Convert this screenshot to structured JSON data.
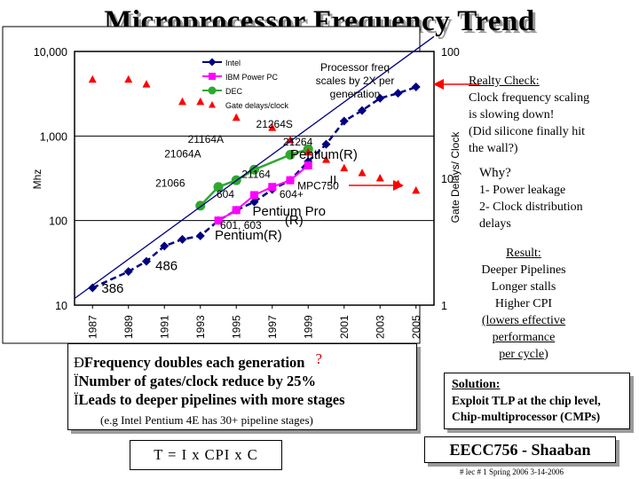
{
  "slide": {
    "title": "Microprocessor Frequency Trend",
    "reality": {
      "heading": "Realty Check:",
      "lines": [
        "Clock frequency scaling",
        "is slowing down!",
        "(Did silicone finally hit",
        "the wall?)"
      ]
    },
    "why": {
      "heading": "Why?",
      "lines": [
        "1- Power leakage",
        "2- Clock distribution",
        "delays"
      ]
    },
    "result": {
      "heading": "Result:",
      "lines": [
        "Deeper Pipelines",
        "Longer stalls",
        "Higher CPI"
      ],
      "underlined": [
        "(lowers effective",
        "performance",
        "per cycle"
      ],
      "close_paren": ")"
    },
    "solution": {
      "heading": "Solution:",
      "lines": [
        "Exploit TLP at the chip level,",
        "Chip-multiprocessor (CMPs)"
      ]
    },
    "bullets": [
      {
        "marker": "Ð",
        "text": "Frequency doubles each generation",
        "suffix": "?"
      },
      {
        "marker": "Ï",
        "text": "Number of gates/clock reduce by 25%",
        "suffix": ""
      },
      {
        "marker": "Ï",
        "text": "Leads to deeper pipelines with more stages",
        "suffix": ""
      }
    ],
    "bullets_note": "(e.g Intel Pentium 4E  has 30+ pipeline stages)",
    "formula": "T = I x CPI  x C",
    "footer_course": "EECC756 - Shaaban",
    "footer_line": "#  lec # 1    Spring 2006   3-14-2006"
  },
  "chart_data": {
    "type": "line",
    "x_ticks": [
      "1987",
      "1989",
      "1991",
      "1993",
      "1995",
      "1997",
      "1999",
      "2001",
      "2003",
      "2005"
    ],
    "x_range": [
      1986,
      2006
    ],
    "y_left": {
      "label": "Mhz",
      "scale": "log",
      "range": [
        10,
        10000
      ],
      "ticks": [
        "10",
        "100",
        "1,000",
        "10,000"
      ]
    },
    "y_right": {
      "label": "Gate Delays/ Clock",
      "scale": "log",
      "range": [
        1,
        100
      ],
      "ticks": [
        "1",
        "10",
        "100"
      ]
    },
    "legend": {
      "placement": "top-center",
      "items": [
        {
          "name": "Intel",
          "color": "#000080",
          "marker": "diamond"
        },
        {
          "name": "IBM Power PC",
          "color": "#ff00ff",
          "marker": "square"
        },
        {
          "name": "DEC",
          "color": "#2fa82f",
          "marker": "circle"
        },
        {
          "name": "Gate delays/clock",
          "color": "#ff0000",
          "marker": "triangle"
        }
      ]
    },
    "annotation": {
      "lines": [
        "Processor freq",
        "scales by 2X per",
        "generation"
      ]
    },
    "series": [
      {
        "name": "Intel",
        "color": "#000080",
        "axis": "left",
        "points": [
          [
            1987,
            16
          ],
          [
            1989,
            25
          ],
          [
            1990,
            33
          ],
          [
            1991,
            50
          ],
          [
            1992,
            60
          ],
          [
            1993,
            66
          ],
          [
            1994,
            100
          ],
          [
            1995,
            133
          ],
          [
            1996,
            166
          ],
          [
            1997,
            233
          ],
          [
            1998,
            300
          ],
          [
            1999,
            500
          ],
          [
            2000,
            800
          ],
          [
            2001,
            1500
          ],
          [
            2002,
            2000
          ],
          [
            2003,
            2800
          ],
          [
            2004,
            3200
          ],
          [
            2005,
            3800
          ]
        ]
      },
      {
        "name": "IBM Power PC",
        "color": "#ff00ff",
        "axis": "left",
        "points": [
          [
            1994,
            100
          ],
          [
            1995,
            133
          ],
          [
            1996,
            200
          ],
          [
            1997,
            250
          ],
          [
            1998,
            300
          ],
          [
            1999,
            450
          ]
        ]
      },
      {
        "name": "DEC",
        "color": "#2fa82f",
        "axis": "left",
        "points": [
          [
            1993,
            150
          ],
          [
            1994,
            250
          ],
          [
            1995,
            300
          ],
          [
            1996,
            400
          ],
          [
            1998,
            600
          ],
          [
            1999,
            700
          ]
        ]
      },
      {
        "name": "Gate delays/clock",
        "color": "#ff0000",
        "axis": "right",
        "points": [
          [
            1987,
            60
          ],
          [
            1989,
            60
          ],
          [
            1990,
            55
          ],
          [
            1992,
            40
          ],
          [
            1993,
            40
          ],
          [
            1995,
            30
          ],
          [
            1997,
            25
          ],
          [
            1998,
            20
          ],
          [
            1999,
            16
          ],
          [
            2000,
            14
          ],
          [
            2001,
            12
          ],
          [
            2002,
            11
          ],
          [
            2003,
            10
          ],
          [
            2004,
            9
          ],
          [
            2005,
            8
          ]
        ]
      },
      {
        "name": "trend",
        "color": "#000080",
        "axis": "left",
        "style": "solid-thin",
        "points": [
          [
            1986,
            12
          ],
          [
            2006,
            15000
          ]
        ]
      }
    ],
    "labels": [
      {
        "text": "386",
        "x": 1987.5,
        "y": 14,
        "size": 15
      },
      {
        "text": "486",
        "x": 1990.5,
        "y": 26,
        "size": 15
      },
      {
        "text": "Pentium(R)",
        "x": 1993.8,
        "y": 60,
        "size": 15
      },
      {
        "text": "601, 603",
        "x": 1994.1,
        "y": 80,
        "size": 12
      },
      {
        "text": "(R)",
        "x": 1997.7,
        "y": 90,
        "size": 15
      },
      {
        "text": "Pentium Pro",
        "x": 1995.9,
        "y": 115,
        "size": 15
      },
      {
        "text": "604",
        "x": 1993.9,
        "y": 185,
        "size": 12
      },
      {
        "text": "604+",
        "x": 1997.4,
        "y": 185,
        "size": 12
      },
      {
        "text": "21066",
        "x": 1990.5,
        "y": 250,
        "size": 12
      },
      {
        "text": "21164",
        "x": 1995.3,
        "y": 320,
        "size": 12
      },
      {
        "text": "MPC750",
        "x": 1998.4,
        "y": 235,
        "size": 12
      },
      {
        "text": "II",
        "x": 2000.2,
        "y": 270,
        "size": 14
      },
      {
        "text": "Pentium(R)",
        "x": 1998.0,
        "y": 540,
        "size": 15
      },
      {
        "text": "21064A",
        "x": 1991.0,
        "y": 560,
        "size": 12
      },
      {
        "text": "21164A",
        "x": 1992.3,
        "y": 830,
        "size": 12
      },
      {
        "text": "21264",
        "x": 1997.6,
        "y": 770,
        "size": 12
      },
      {
        "text": "21264S",
        "x": 1996.1,
        "y": 1250,
        "size": 12
      }
    ]
  }
}
